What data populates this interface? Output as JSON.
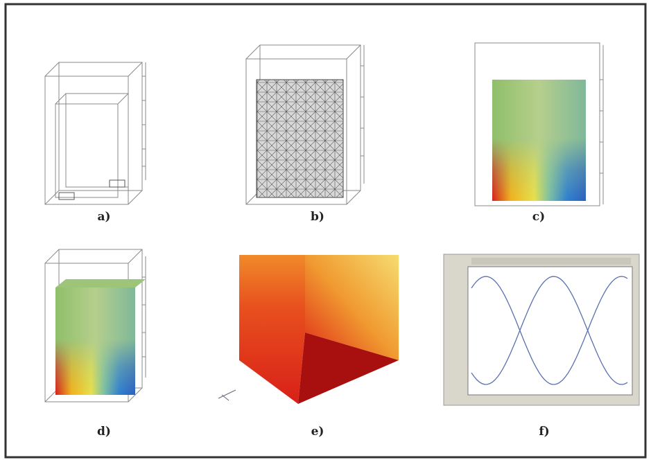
{
  "panels": [
    {
      "label": "a)"
    },
    {
      "label": "b)"
    },
    {
      "label": "c)"
    },
    {
      "label": "d)"
    },
    {
      "label": "e)"
    },
    {
      "label": "f)"
    }
  ]
}
